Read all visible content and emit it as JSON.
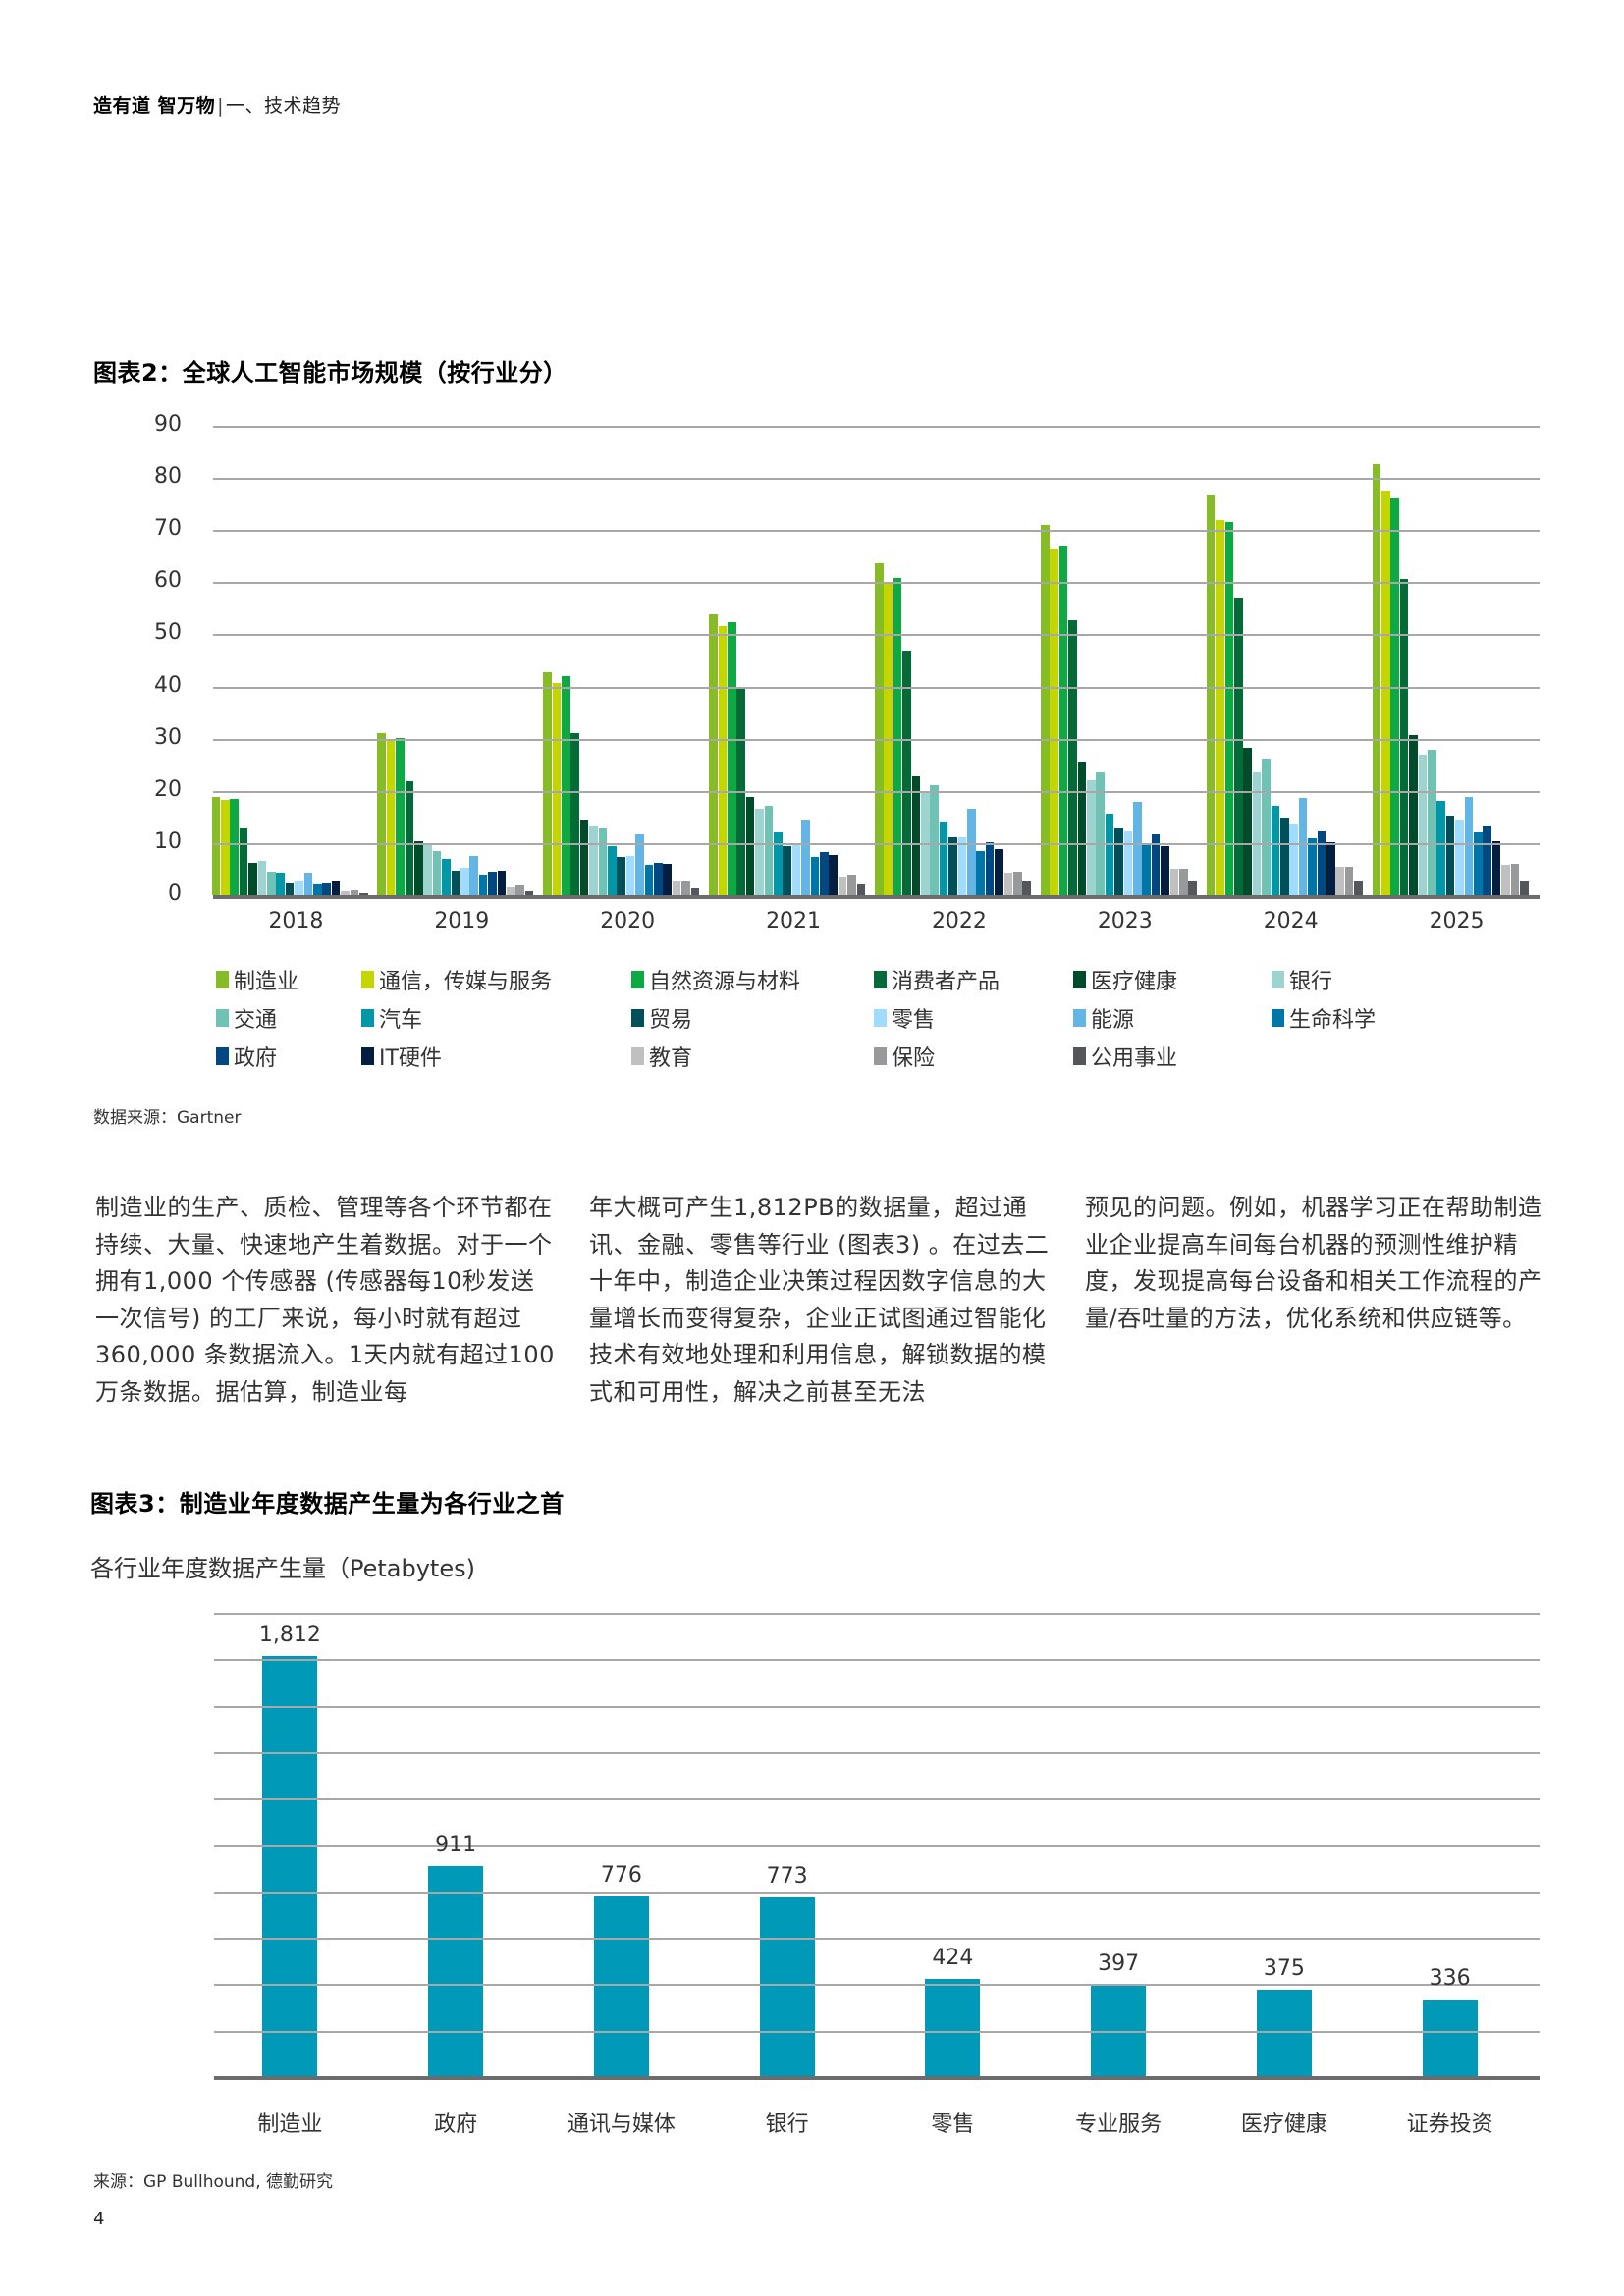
{
  "header": {
    "brand": "造有道 智万物",
    "separator": "|",
    "section": "一、技术趋势"
  },
  "figure2": {
    "title": "图表2：全球人工智能市场规模（按行业分）",
    "source": "数据来源：Gartner"
  },
  "figure3": {
    "title": "图表3：制造业年度数据产生量为各行业之首",
    "subtitle": "各行业年度数据产生量（Petabytes)",
    "source": "来源：GP Bullhound, 德勤研究"
  },
  "body_text": {
    "columns": [
      "制造业的生产、质检、管理等各个环节都在持续、大量、快速地产生着数据。对于一个拥有1,000 个传感器 (传感器每10秒发送一次信号) 的工厂来说，每小时就有超过 360,000 条数据流入。1天内就有超过100万条数据。据估算，制造业每",
      "年大概可产生1,812PB的数据量，超过通讯、金融、零售等行业 (图表3) 。在过去二十年中，制造企业决策过程因数字信息的大量增长而变得复杂，企业正试图通过智能化技术有效地处理和利用信息，解锁数据的模式和可用性，解决之前甚至无法",
      "预见的问题。例如，机器学习正在帮助制造业企业提高车间每台机器的预测性维护精度，发现提高每台设备和相关工作流程的产量/吞吐量的方法，优化系统和供应链等。"
    ]
  },
  "page_number": "4",
  "chart_data": [
    {
      "type": "bar",
      "title": "图表2：全球人工智能市场规模（按行业分）",
      "xlabel": "",
      "ylabel": "",
      "ylim": [
        0,
        90
      ],
      "yticks": [
        0,
        10,
        20,
        30,
        40,
        50,
        60,
        70,
        80,
        90
      ],
      "grid": true,
      "legend_position": "bottom",
      "categories": [
        "2018",
        "2019",
        "2020",
        "2021",
        "2022",
        "2023",
        "2024",
        "2025"
      ],
      "series": [
        {
          "name": "制造业",
          "color": "#86bc25",
          "values": [
            18.8,
            31.0,
            42.8,
            53.9,
            63.7,
            70.9,
            76.9,
            82.7
          ]
        },
        {
          "name": "通信，传媒与服务",
          "color": "#c4d600",
          "values": [
            18.2,
            29.5,
            40.6,
            51.5,
            60.1,
            66.4,
            72.0,
            77.5
          ]
        },
        {
          "name": "自然资源与材料",
          "color": "#0da942",
          "values": [
            18.5,
            30.2,
            42.0,
            52.4,
            60.9,
            67.1,
            71.6,
            76.2
          ]
        },
        {
          "name": "消费者产品",
          "color": "#046a38",
          "values": [
            13.0,
            21.9,
            31.0,
            39.9,
            46.8,
            52.8,
            57.0,
            60.7
          ]
        },
        {
          "name": "医疗健康",
          "color": "#004c2a",
          "values": [
            6.2,
            10.4,
            14.5,
            18.9,
            22.8,
            25.6,
            28.2,
            30.6
          ]
        },
        {
          "name": "银行",
          "color": "#9dd4cf",
          "values": [
            6.6,
            9.8,
            13.4,
            16.6,
            19.8,
            22.1,
            23.8,
            26.9
          ]
        },
        {
          "name": "交通",
          "color": "#6fc2b4",
          "values": [
            4.5,
            8.5,
            12.8,
            17.2,
            21.0,
            23.8,
            26.2,
            27.9
          ]
        },
        {
          "name": "汽车",
          "color": "#0097a9",
          "values": [
            4.3,
            7.0,
            9.5,
            12.1,
            14.1,
            15.7,
            17.2,
            18.1
          ]
        },
        {
          "name": "贸易",
          "color": "#004f59",
          "values": [
            2.3,
            4.7,
            7.4,
            9.5,
            11.2,
            13.0,
            14.9,
            15.3
          ]
        },
        {
          "name": "零售",
          "color": "#a0dcff",
          "values": [
            2.9,
            5.3,
            7.6,
            9.8,
            11.2,
            12.3,
            13.8,
            14.5
          ]
        },
        {
          "name": "能源",
          "color": "#62b5e5",
          "values": [
            4.3,
            7.6,
            11.6,
            14.5,
            16.6,
            17.9,
            18.7,
            18.9
          ]
        },
        {
          "name": "生命科学",
          "color": "#0076a8",
          "values": [
            2.1,
            4.0,
            5.8,
            7.4,
            8.5,
            9.8,
            11.0,
            12.1
          ]
        },
        {
          "name": "政府",
          "color": "#004882",
          "values": [
            2.3,
            4.5,
            6.2,
            8.3,
            10.2,
            11.6,
            12.3,
            13.4
          ]
        },
        {
          "name": "IT硬件",
          "color": "#041e42",
          "values": [
            2.7,
            4.7,
            6.0,
            7.8,
            8.9,
            9.5,
            10.2,
            10.4
          ]
        },
        {
          "name": "教育",
          "color": "#c0c0c0",
          "values": [
            0.8,
            1.6,
            2.7,
            3.6,
            4.3,
            5.1,
            5.5,
            5.8
          ]
        },
        {
          "name": "保险",
          "color": "#97999b",
          "values": [
            1.0,
            1.9,
            2.7,
            4.0,
            4.5,
            5.1,
            5.5,
            6.0
          ]
        },
        {
          "name": "公用事业",
          "color": "#53565a",
          "values": [
            0.3,
            0.8,
            1.4,
            2.1,
            2.7,
            2.9,
            2.9,
            2.9
          ]
        }
      ]
    },
    {
      "type": "bar",
      "title": "图表3：制造业年度数据产生量为各行业之首",
      "subtitle": "各行业年度数据产生量（Petabytes)",
      "xlabel": "",
      "ylabel": "Petabytes",
      "ylim": [
        0,
        2000
      ],
      "grid": true,
      "categories": [
        "制造业",
        "政府",
        "通讯与媒体",
        "银行",
        "零售",
        "专业服务",
        "医疗健康",
        "证券投资"
      ],
      "values": [
        1812,
        911,
        776,
        773,
        424,
        397,
        375,
        336
      ],
      "value_labels": [
        "1,812",
        "911",
        "776",
        "773",
        "424",
        "397",
        "375",
        "336"
      ],
      "color": "#009ab8"
    }
  ]
}
